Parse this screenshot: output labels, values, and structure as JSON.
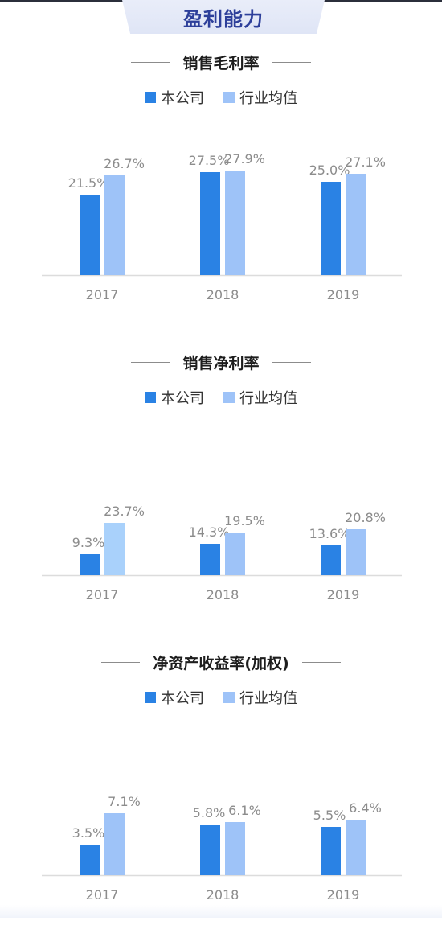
{
  "header": {
    "title": "盈利能力"
  },
  "legend": {
    "company": "本公司",
    "industry": "行业均值"
  },
  "colors": {
    "company": "#2a82e4",
    "industry": "#9ec3f8",
    "industry_highlight": "#a9d1fb",
    "baseline": "#dcdcdc",
    "label": "#8c8c8c"
  },
  "chart_data": [
    {
      "type": "bar",
      "title": "销售毛利率",
      "categories": [
        "2017",
        "2018",
        "2019"
      ],
      "series": [
        {
          "name": "本公司",
          "values": [
            21.5,
            27.5,
            25.0
          ],
          "labels": [
            "21.5%",
            "27.5%",
            "25.0%"
          ]
        },
        {
          "name": "行业均值",
          "values": [
            26.7,
            27.9,
            27.1
          ],
          "labels": [
            "26.7%",
            "27.9%",
            "27.1%"
          ]
        }
      ],
      "ylim": [
        0,
        27.9
      ],
      "grid": false,
      "legend_position": "top"
    },
    {
      "type": "bar",
      "title": "销售净利率",
      "categories": [
        "2017",
        "2018",
        "2019"
      ],
      "series": [
        {
          "name": "本公司",
          "values": [
            9.3,
            14.3,
            13.6
          ],
          "labels": [
            "9.3%",
            "14.3%",
            "13.6%"
          ]
        },
        {
          "name": "行业均值",
          "values": [
            23.7,
            19.5,
            20.8
          ],
          "labels": [
            "23.7%",
            "19.5%",
            "20.8%"
          ]
        }
      ],
      "ylim": [
        0,
        47.4
      ],
      "grid": false,
      "legend_position": "top"
    },
    {
      "type": "bar",
      "title": "净资产收益率(加权)",
      "categories": [
        "2017",
        "2018",
        "2019"
      ],
      "series": [
        {
          "name": "本公司",
          "values": [
            3.5,
            5.8,
            5.5
          ],
          "labels": [
            "3.5%",
            "5.8%",
            "5.5%"
          ]
        },
        {
          "name": "行业均值",
          "values": [
            7.1,
            6.1,
            6.4
          ],
          "labels": [
            "7.1%",
            "6.1%",
            "6.4%"
          ]
        }
      ],
      "ylim": [
        0,
        12.0
      ],
      "grid": false,
      "legend_position": "top"
    }
  ]
}
